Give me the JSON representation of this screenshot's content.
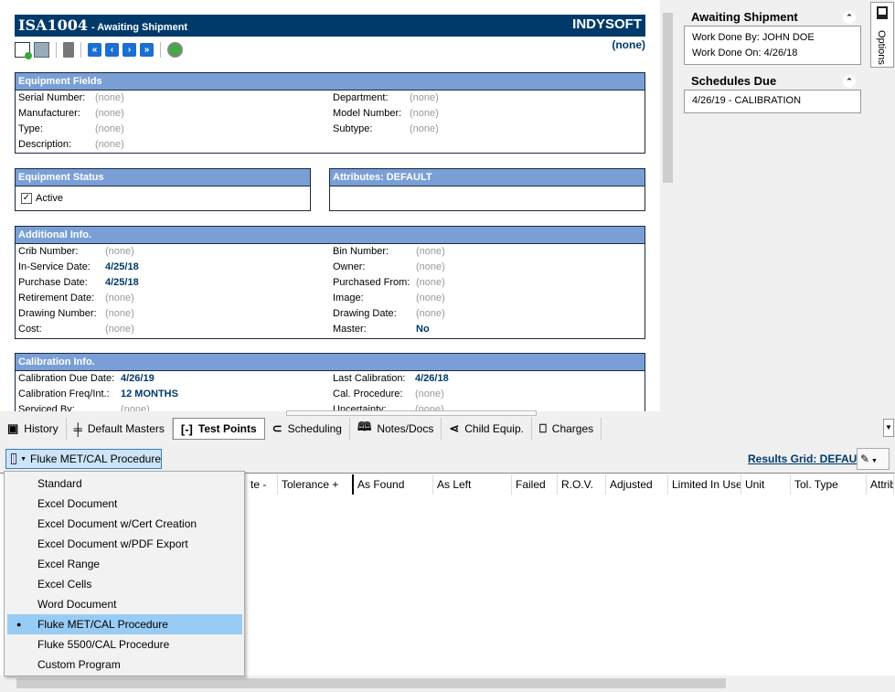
{
  "header": {
    "id": "ISA1004",
    "status": "- Awaiting Shipment",
    "brand": "INDYSOFT",
    "subtitle": "(none)"
  },
  "toolbar": {
    "icons": [
      "new-document-icon",
      "print-icon",
      "delete-icon",
      "first-record-icon",
      "previous-record-icon",
      "next-record-icon",
      "last-record-icon",
      "refresh-icon"
    ],
    "first": "«",
    "prev": "‹",
    "next": "›",
    "last": "»"
  },
  "equipment_fields": {
    "title": "Equipment Fields",
    "left": [
      {
        "label": "Serial Number:",
        "value": "(none)"
      },
      {
        "label": "Manufacturer:",
        "value": "(none)"
      },
      {
        "label": "Type:",
        "value": "(none)"
      },
      {
        "label": "Description:",
        "value": "(none)"
      }
    ],
    "right": [
      {
        "label": "Department:",
        "value": "(none)"
      },
      {
        "label": "Model Number:",
        "value": "(none)"
      },
      {
        "label": "Subtype:",
        "value": "(none)"
      }
    ]
  },
  "equipment_status": {
    "title": "Equipment Status",
    "active_label": "Active",
    "active": true
  },
  "attributes": {
    "title": "Attributes:  DEFAULT"
  },
  "additional_info": {
    "title": "Additional Info.",
    "left": [
      {
        "label": "Crib Number:",
        "value": "(none)"
      },
      {
        "label": "In-Service Date:",
        "value": "4/25/18"
      },
      {
        "label": "Purchase Date:",
        "value": "4/25/18"
      },
      {
        "label": "Retirement Date:",
        "value": "(none)"
      },
      {
        "label": "Drawing Number:",
        "value": "(none)"
      },
      {
        "label": "Cost:",
        "value": "(none)"
      }
    ],
    "right": [
      {
        "label": "Bin Number:",
        "value": "(none)"
      },
      {
        "label": "Owner:",
        "value": "(none)"
      },
      {
        "label": "Purchased From:",
        "value": "(none)"
      },
      {
        "label": "Image:",
        "value": "(none)"
      },
      {
        "label": "Drawing Date:",
        "value": "(none)"
      },
      {
        "label": "Master:",
        "value": "No"
      }
    ]
  },
  "calibration_info": {
    "title": "Calibration Info.",
    "left": [
      {
        "label": "Calibration Due Date:",
        "value": "4/26/19"
      },
      {
        "label": "Calibration Freq/Int.:",
        "value": "12 MONTHS"
      },
      {
        "label": "Serviced By:",
        "value": "(none)"
      }
    ],
    "right": [
      {
        "label": "Last Calibration:",
        "value": "4/26/18"
      },
      {
        "label": "Cal. Procedure:",
        "value": "(none)"
      },
      {
        "label": "Uncertainty:",
        "value": "(none)"
      }
    ]
  },
  "side_panel": {
    "awaiting": {
      "title": "Awaiting Shipment",
      "work_done_by": "Work Done By:  JOHN DOE",
      "work_done_on": "Work Done On:  4/26/18"
    },
    "schedules": {
      "title": "Schedules Due",
      "item": "4/26/19 - CALIBRATION"
    },
    "options_tab": "Options"
  },
  "tabs": [
    {
      "label": "History",
      "icon": "history-icon"
    },
    {
      "label": "Default Masters",
      "icon": "masters-icon"
    },
    {
      "label": "Test Points",
      "icon": "test-points-icon",
      "active": true
    },
    {
      "label": "Scheduling",
      "icon": "paperclip-icon"
    },
    {
      "label": "Notes/Docs",
      "icon": "book-icon"
    },
    {
      "label": "Child Equip.",
      "icon": "share-icon"
    },
    {
      "label": "Charges",
      "icon": "charges-icon"
    }
  ],
  "procedure_button": {
    "label": "Fluke MET/CAL Procedure"
  },
  "results_grid": {
    "label": "Results Grid:  DEFAULT"
  },
  "grid": {
    "columns": [
      "te -",
      "Tolerance +",
      "As Found",
      "As Left",
      "Failed",
      "R.O.V.",
      "Adjusted",
      "Limited In Use",
      "Unit",
      "Tol. Type",
      "Attrib"
    ]
  },
  "menu": {
    "items": [
      "Standard",
      "Excel Document",
      "Excel Document w/Cert Creation",
      "Excel Document w/PDF Export",
      "Excel Range",
      "Excel Cells",
      "Word Document",
      "Fluke MET/CAL Procedure",
      "Fluke 5500/CAL Procedure",
      "Custom Program"
    ],
    "selected": "Fluke MET/CAL Procedure",
    "bullet": "●"
  }
}
